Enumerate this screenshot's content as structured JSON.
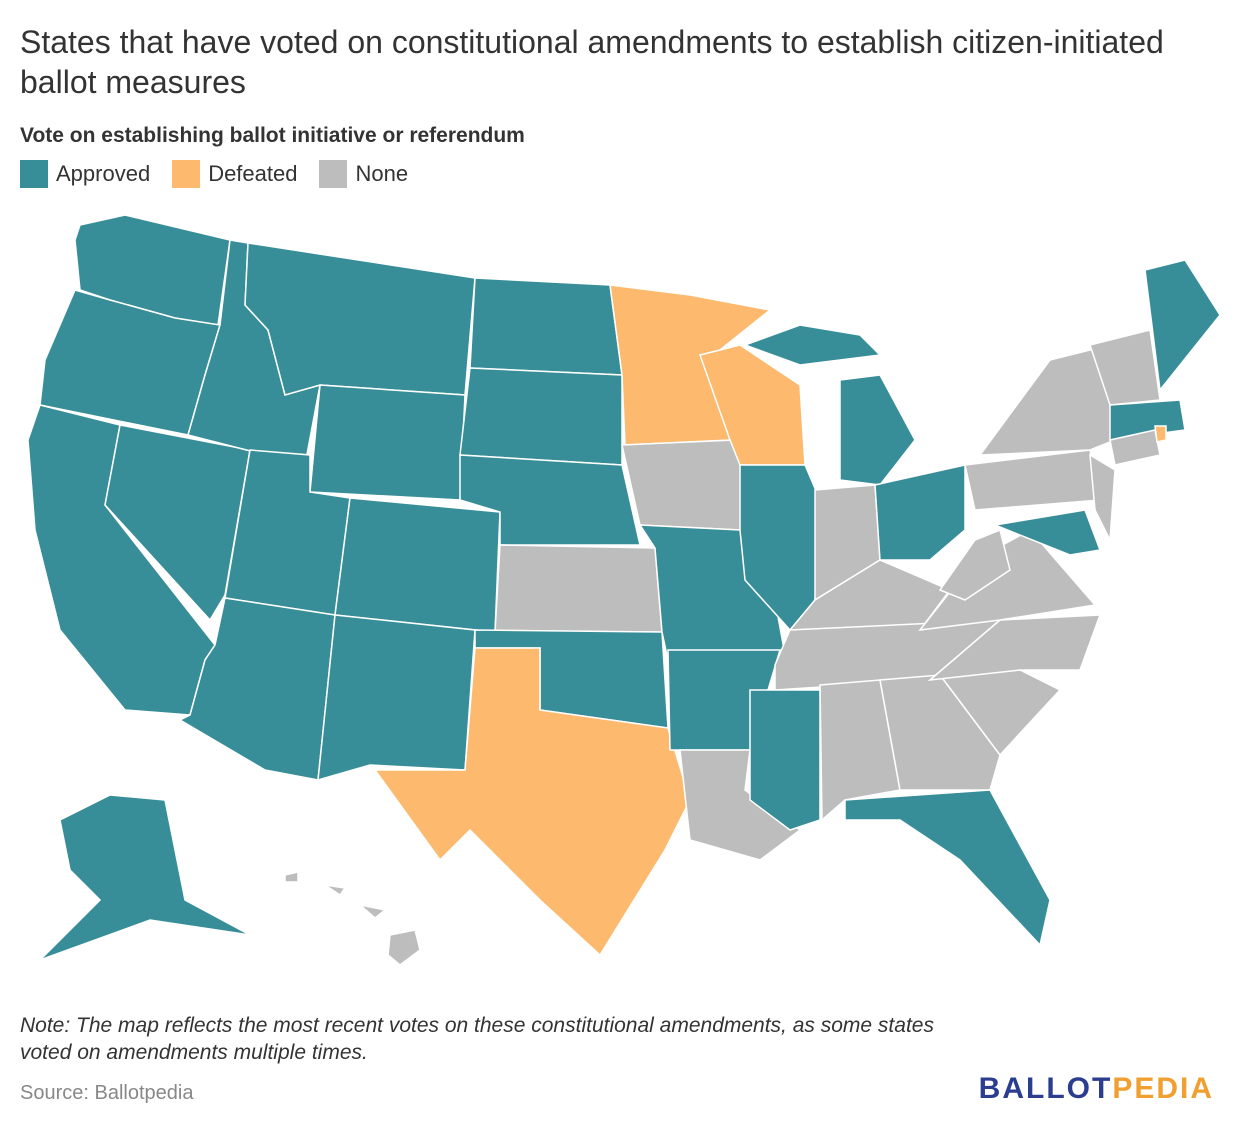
{
  "header": {
    "title": "States that have voted on constitutional amendments to establish citizen-initiated ballot measures"
  },
  "legend": {
    "title": "Vote on establishing ballot initiative or referendum",
    "items": [
      {
        "label": "Approved",
        "color": "#388e98"
      },
      {
        "label": "Defeated",
        "color": "#fdb96e"
      },
      {
        "label": "None",
        "color": "#bdbdbd"
      }
    ]
  },
  "note": "Note: The map reflects the most recent votes on these constitutional amendments, as some states voted on amendments multiple times.",
  "source": "Source: Ballotpedia",
  "logo": {
    "first": "BALLOT",
    "second": "PEDIA"
  }
}
